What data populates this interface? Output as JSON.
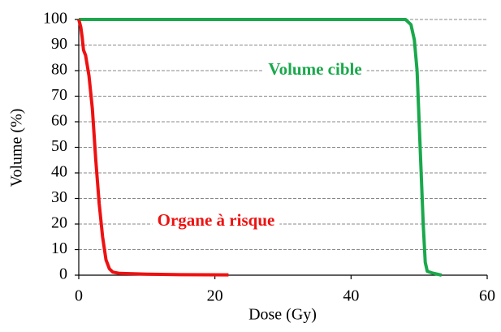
{
  "chart_data": {
    "type": "line",
    "xlabel": "Dose (Gy)",
    "ylabel": "Volume (%)",
    "xlim": [
      0,
      60
    ],
    "xticks": [
      0,
      20,
      40,
      60
    ],
    "ylim": [
      0,
      100
    ],
    "yticks": [
      0,
      10,
      20,
      30,
      40,
      50,
      60,
      70,
      80,
      90,
      100
    ],
    "grid": true,
    "series": [
      {
        "name": "Volume cible",
        "color": "#1aa84c",
        "x": [
          0,
          48,
          48.8,
          49.3,
          49.7,
          50,
          50.3,
          50.6,
          50.9,
          51.2,
          52,
          53.3
        ],
        "values": [
          100,
          100,
          98,
          92,
          80,
          60,
          40,
          20,
          5,
          1.5,
          0.8,
          0
        ]
      },
      {
        "name": "Organe à risque",
        "color": "#ee1111",
        "x": [
          0,
          0.3,
          0.5,
          0.7,
          1,
          1.5,
          2,
          2.5,
          3,
          3.5,
          4,
          4.5,
          5,
          6,
          10,
          15,
          22
        ],
        "values": [
          100,
          97,
          93,
          88,
          86,
          78,
          65,
          45,
          28,
          15,
          6,
          2.5,
          1.2,
          0.7,
          0.4,
          0.2,
          0.1
        ]
      }
    ]
  }
}
